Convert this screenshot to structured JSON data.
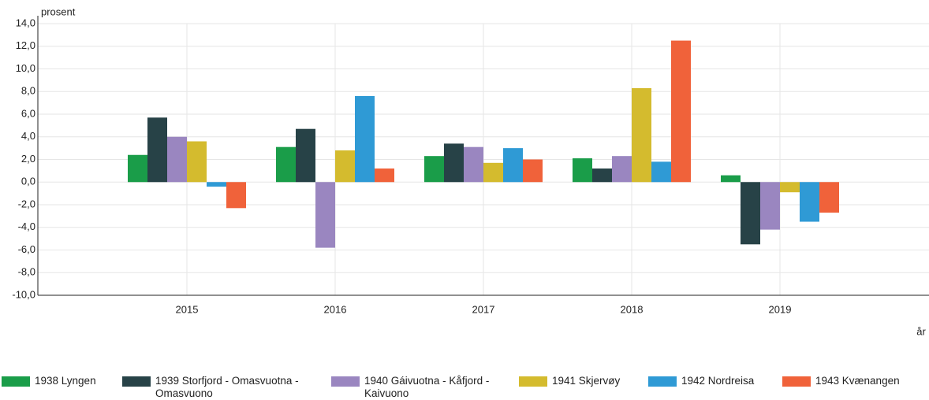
{
  "chart_data": {
    "type": "bar",
    "y_label": "prosent",
    "x_label": "år",
    "categories": [
      "2015",
      "2016",
      "2017",
      "2018",
      "2019"
    ],
    "series": [
      {
        "name": "1938 Lyngen",
        "color": "#1a9d49",
        "values": [
          2.4,
          3.1,
          2.3,
          2.1,
          0.6
        ]
      },
      {
        "name": "1939 Storfjord - Omasvuotna - Omasvuono",
        "color": "#274247",
        "values": [
          5.7,
          4.7,
          3.4,
          1.2,
          -5.5
        ]
      },
      {
        "name": "1940 Gáivuotna - Kåfjord - Kaivuono",
        "color": "#9a86c0",
        "values": [
          4.0,
          -5.8,
          3.1,
          2.3,
          -4.2
        ]
      },
      {
        "name": "1941 Skjervøy",
        "color": "#d4bb2e",
        "values": [
          3.6,
          2.8,
          1.7,
          8.3,
          -0.9
        ]
      },
      {
        "name": "1942 Nordreisa",
        "color": "#2f9ad5",
        "values": [
          -0.4,
          7.6,
          3.0,
          1.8,
          -3.5
        ]
      },
      {
        "name": "1943 Kvænangen",
        "color": "#f0623a",
        "values": [
          -2.3,
          1.2,
          2.0,
          12.5,
          -2.7
        ]
      }
    ],
    "ylim": [
      -10,
      14
    ],
    "yticks": [
      {
        "value": -10,
        "label": "-10,0"
      },
      {
        "value": -8,
        "label": "-8,0"
      },
      {
        "value": -6,
        "label": "-6,0"
      },
      {
        "value": -4,
        "label": "-4,0"
      },
      {
        "value": -2,
        "label": "-2,0"
      },
      {
        "value": 0,
        "label": "0,0"
      },
      {
        "value": 2,
        "label": "2,0"
      },
      {
        "value": 4,
        "label": "4,0"
      },
      {
        "value": 6,
        "label": "6,0"
      },
      {
        "value": 8,
        "label": "8,0"
      },
      {
        "value": 10,
        "label": "10,0"
      },
      {
        "value": 12,
        "label": "12,0"
      },
      {
        "value": 14,
        "label": "14,0"
      }
    ],
    "grid": true
  }
}
